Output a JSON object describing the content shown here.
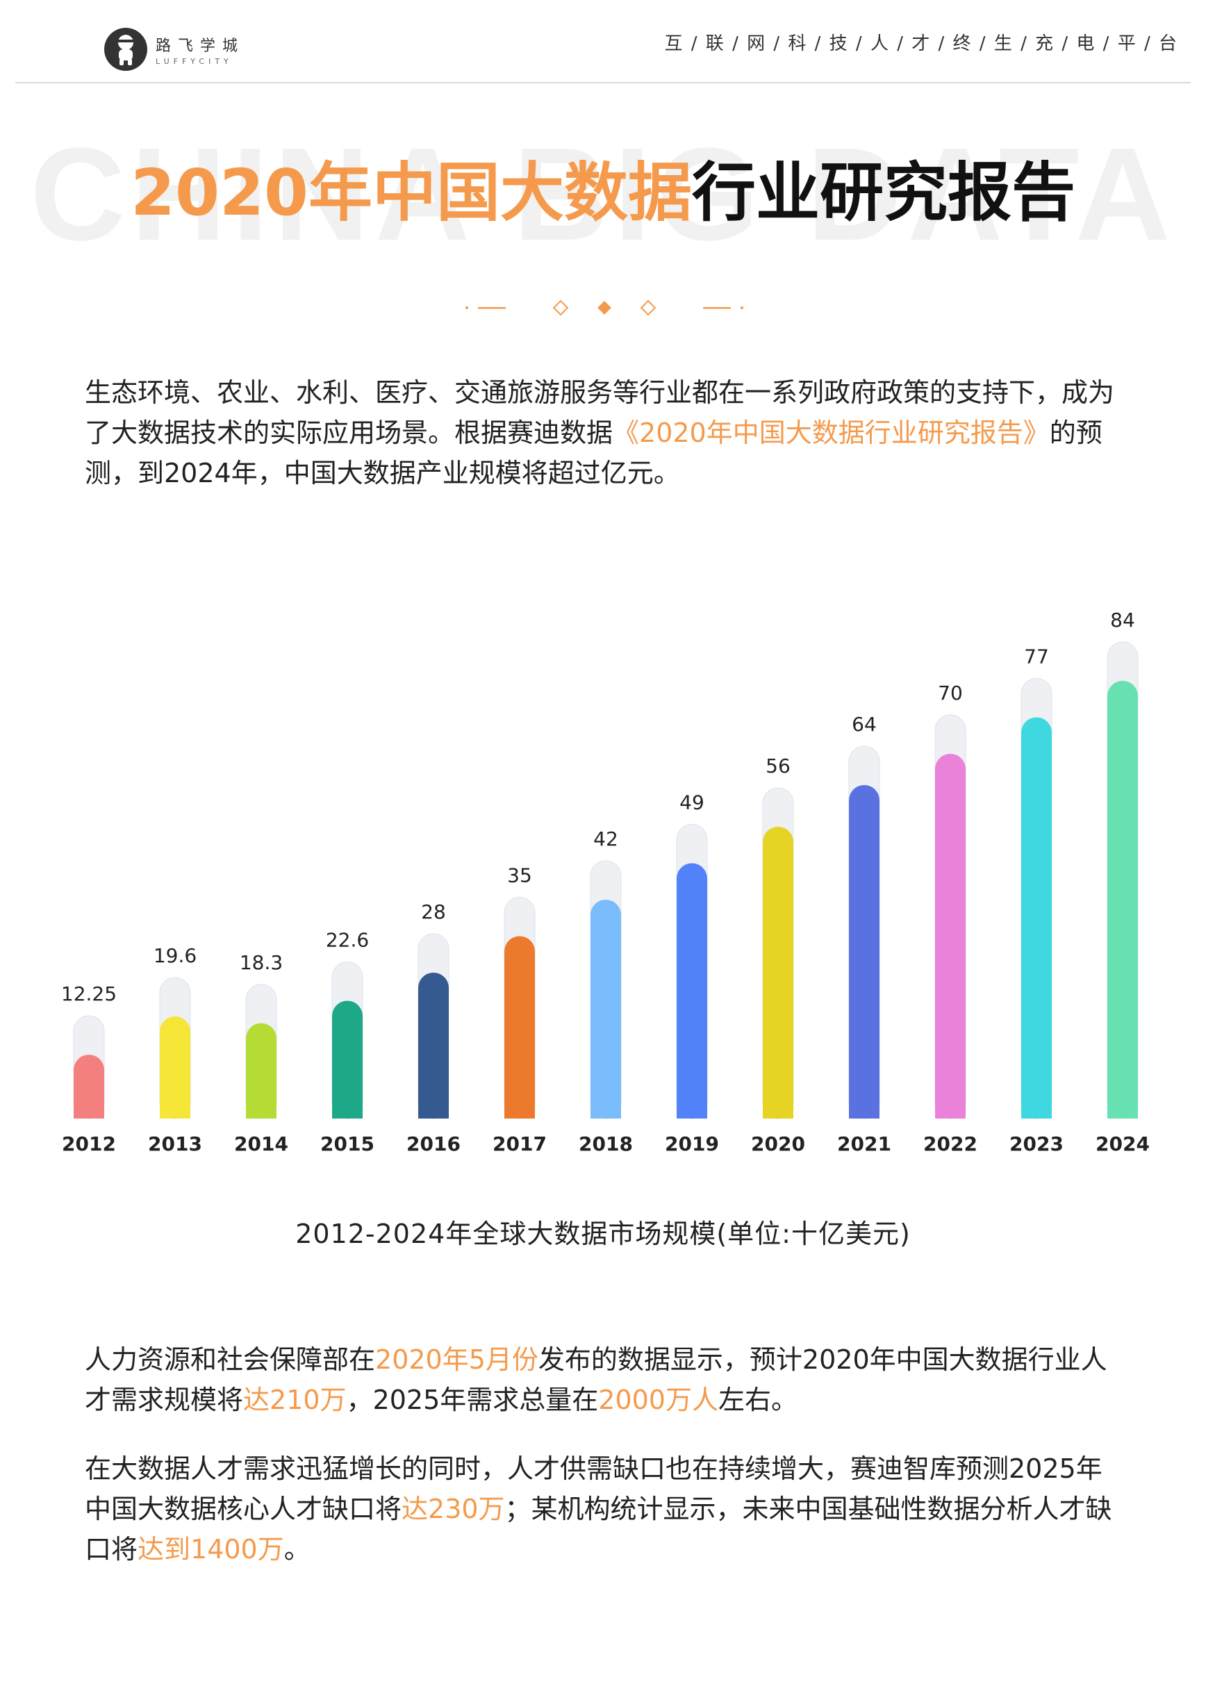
{
  "header": {
    "logo_cn": "路飞学城",
    "logo_en": "LUFFYCITY",
    "tagline": "互 / 联 / 网 / 科 / 技 / 人 / 才 / 终 / 生 / 充 / 电 / 平 / 台"
  },
  "title": {
    "watermark": "CHINA BIG DATA",
    "orange_part": "2020年中国大数据",
    "black_part": "行业研究报告"
  },
  "intro": {
    "p1": "生态环境、农业、水利、医疗、交通旅游服务等行业都在一系列政府政策的支持下，成为了大数据技术的实际应用场景。根据赛迪数据",
    "p1_hl": "《2020年中国大数据行业研究报告》",
    "p1_end": "的预测，到2024年，中国大数据产业规模将超过亿元。"
  },
  "chart_data": {
    "type": "bar",
    "categories": [
      "2012",
      "2013",
      "2014",
      "2015",
      "2016",
      "2017",
      "2018",
      "2019",
      "2020",
      "2021",
      "2022",
      "2023",
      "2024"
    ],
    "values": [
      12.25,
      19.6,
      18.3,
      22.6,
      28,
      35,
      42,
      49,
      56,
      64,
      70,
      77,
      84
    ],
    "value_labels": [
      "12.25",
      "19.6",
      "18.3",
      "22.6",
      "28",
      "35",
      "42",
      "49",
      "56",
      "64",
      "70",
      "77",
      "84"
    ],
    "colors": [
      "#f47f7f",
      "#f5e637",
      "#b4dc35",
      "#1fa888",
      "#345a8f",
      "#ec7a2c",
      "#7bbcfc",
      "#5282fa",
      "#e6d324",
      "#5a72e0",
      "#ea82da",
      "#3fd8e0",
      "#67e0b2"
    ],
    "title": "2012-2024年全球大数据市场规模(单位:十亿美元)"
  },
  "section2": {
    "p2_a": "人力资源和社会保障部在",
    "p2_b": "2020年5月份",
    "p2_c": "发布的数据显示，预计2020年中国大数据行业人才需求规模将",
    "p2_d": "达210万",
    "p2_e": "，2025年需求总量在",
    "p2_f": "2000万人",
    "p2_g": "左右。",
    "p3_a": "在大数据人才需求迅猛增长的同时，人才供需缺口也在持续增大，赛迪智库预测2025年中国大数据核心人才缺口将",
    "p3_b": "达230万",
    "p3_c": "；某机构统计显示，未来中国基础性数据分析人才缺口将",
    "p3_d": "达到1400万",
    "p3_e": "。"
  }
}
